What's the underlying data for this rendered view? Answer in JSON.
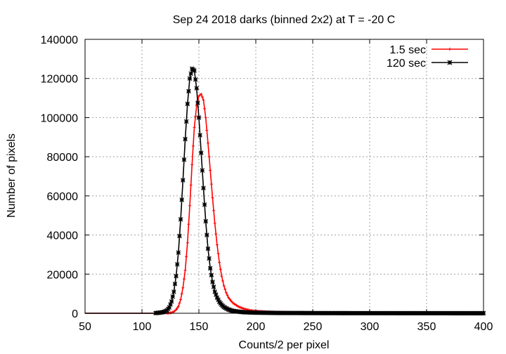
{
  "chart_data": {
    "type": "line",
    "title": "Sep 24 2018 darks (binned 2x2) at T = -20 C",
    "xlabel": "Counts/2 per pixel",
    "ylabel": "Number of pixels",
    "xlim": [
      50,
      400
    ],
    "ylim": [
      0,
      140000
    ],
    "xticks": [
      50,
      100,
      150,
      200,
      250,
      300,
      350,
      400
    ],
    "yticks": [
      0,
      20000,
      40000,
      60000,
      80000,
      100000,
      120000,
      140000
    ],
    "grid": true,
    "legend_position": "top-right",
    "series": [
      {
        "name": "1.5 sec",
        "color": "#ff0000",
        "marker": "plus",
        "x": [
          50,
          110,
          122,
          126,
          128,
          130,
          132,
          134,
          136,
          138,
          140,
          142,
          144,
          146,
          148,
          150,
          152,
          154,
          156,
          158,
          160,
          162,
          164,
          166,
          168,
          170,
          172,
          174,
          176,
          178,
          180,
          185,
          190,
          195,
          200,
          210,
          220,
          240,
          260,
          300,
          350,
          400
        ],
        "y": [
          0,
          0,
          0,
          300,
          800,
          1800,
          3500,
          7000,
          13000,
          22000,
          36000,
          55000,
          76000,
          95000,
          106000,
          111000,
          112000,
          109000,
          100000,
          87000,
          73000,
          59000,
          46000,
          35000,
          26000,
          19000,
          14000,
          10500,
          8000,
          6500,
          5200,
          3300,
          2200,
          1500,
          1100,
          700,
          450,
          300,
          200,
          100,
          60,
          40
        ]
      },
      {
        "name": "120 sec",
        "color": "#000000",
        "marker": "star",
        "x": [
          50,
          110,
          114,
          118,
          120,
          122,
          124,
          126,
          128,
          130,
          132,
          134,
          136,
          138,
          140,
          142,
          144,
          146,
          148,
          150,
          152,
          154,
          156,
          158,
          160,
          162,
          164,
          166,
          168,
          170,
          172,
          174,
          176,
          178,
          180,
          185,
          190,
          200,
          220,
          260,
          300,
          350,
          400
        ],
        "y": [
          0,
          0,
          200,
          500,
          800,
          1500,
          3000,
          6000,
          11000,
          19000,
          31000,
          48000,
          68000,
          89000,
          107000,
          120000,
          125000,
          124000,
          115000,
          100000,
          82000,
          64000,
          47000,
          33000,
          23000,
          16000,
          11000,
          8000,
          5800,
          4300,
          3200,
          2500,
          1900,
          1500,
          1200,
          800,
          500,
          300,
          150,
          80,
          50,
          30,
          20
        ]
      }
    ]
  }
}
